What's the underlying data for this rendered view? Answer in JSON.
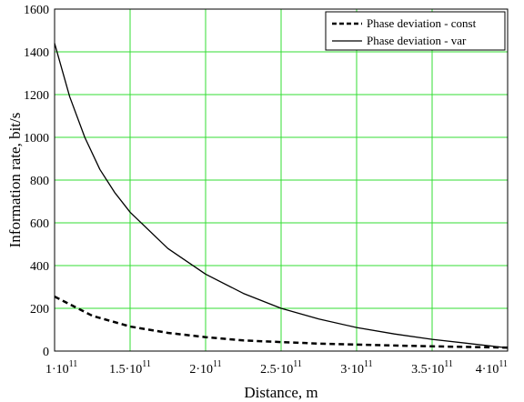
{
  "chart_data": {
    "type": "line",
    "xlabel": "Distance, m",
    "ylabel": "Information rate, bit/s",
    "xlim": [
      100000000000.0,
      400000000000.0
    ],
    "ylim": [
      0,
      1600
    ],
    "grid": true,
    "grid_color": "#33dd33",
    "legend_position": "top-right",
    "x_ticks": [
      {
        "value": 100000000000.0,
        "mantissa": "1",
        "exp": "11"
      },
      {
        "value": 150000000000.0,
        "mantissa": "1.5",
        "exp": "11"
      },
      {
        "value": 200000000000.0,
        "mantissa": "2",
        "exp": "11"
      },
      {
        "value": 250000000000.0,
        "mantissa": "2.5",
        "exp": "11"
      },
      {
        "value": 300000000000.0,
        "mantissa": "3",
        "exp": "11"
      },
      {
        "value": 350000000000.0,
        "mantissa": "3.5",
        "exp": "11"
      },
      {
        "value": 400000000000.0,
        "mantissa": "4",
        "exp": "11"
      }
    ],
    "y_ticks": [
      0,
      200,
      400,
      600,
      800,
      1000,
      1200,
      1400,
      1600
    ],
    "series": [
      {
        "name": "Phase deviation - const",
        "style": "dashed",
        "x": [
          100000000000.0,
          125000000000.0,
          150000000000.0,
          175000000000.0,
          200000000000.0,
          225000000000.0,
          250000000000.0,
          275000000000.0,
          300000000000.0,
          325000000000.0,
          350000000000.0,
          375000000000.0,
          400000000000.0
        ],
        "y": [
          255,
          165,
          115,
          85,
          65,
          50,
          42,
          35,
          30,
          26,
          22,
          19,
          16
        ]
      },
      {
        "name": "Phase deviation - var",
        "style": "solid",
        "x": [
          100000000000.0,
          110000000000.0,
          120000000000.0,
          130000000000.0,
          140000000000.0,
          150000000000.0,
          175000000000.0,
          200000000000.0,
          225000000000.0,
          250000000000.0,
          275000000000.0,
          300000000000.0,
          325000000000.0,
          350000000000.0,
          375000000000.0,
          400000000000.0
        ],
        "y": [
          1440,
          1190,
          1000,
          850,
          740,
          650,
          480,
          360,
          270,
          200,
          150,
          110,
          80,
          55,
          35,
          15
        ]
      }
    ]
  }
}
